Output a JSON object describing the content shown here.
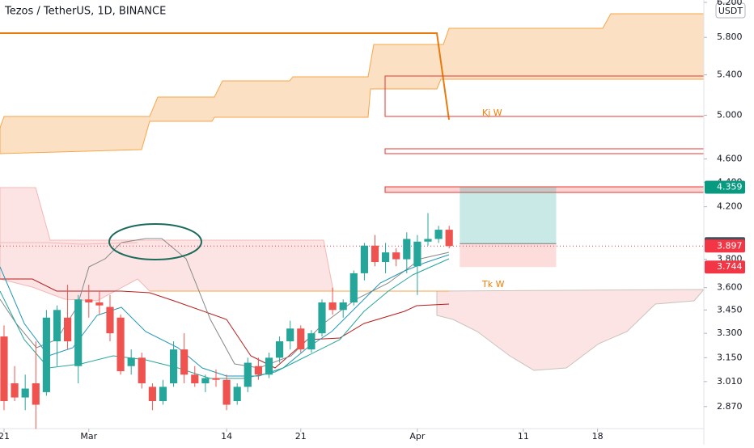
{
  "chart_data": {
    "type": "candlestick",
    "title": "Tezos / TetherUS, 1D, BINANCE",
    "currency": "USDT",
    "log_scale": true,
    "ylim": [
      2.752,
      6.228
    ],
    "yticks": [
      {
        "value": 2.87,
        "label": "2.870"
      },
      {
        "value": 3.01,
        "label": "3.010"
      },
      {
        "value": 3.15,
        "label": "3.150"
      },
      {
        "value": 3.3,
        "label": "3.300"
      },
      {
        "value": 3.45,
        "label": "3.450"
      },
      {
        "value": 3.6,
        "label": "3.600"
      },
      {
        "value": 3.8,
        "label": "3.800"
      },
      {
        "value": 4.2,
        "label": "4.200"
      },
      {
        "value": 4.4,
        "label": "4.400"
      },
      {
        "value": 4.6,
        "label": "4.600"
      },
      {
        "value": 5.0,
        "label": "5.000"
      },
      {
        "value": 5.4,
        "label": "5.400"
      },
      {
        "value": 5.8,
        "label": "5.800"
      },
      {
        "value": 6.2,
        "label": "6.200"
      }
    ],
    "xlim": [
      -0.38,
      66.03
    ],
    "xticks": [
      {
        "value": 0,
        "label": "21"
      },
      {
        "value": 8,
        "label": "Mar"
      },
      {
        "value": 21,
        "label": "14"
      },
      {
        "value": 28,
        "label": "21"
      },
      {
        "value": 39,
        "label": "Apr"
      },
      {
        "value": 49,
        "label": "11"
      },
      {
        "value": 56,
        "label": "18"
      }
    ],
    "x": [
      0,
      1,
      2,
      3,
      4,
      5,
      6,
      7,
      8,
      9,
      10,
      11,
      12,
      13,
      14,
      15,
      16,
      17,
      18,
      19,
      20,
      21,
      22,
      23,
      24,
      25,
      26,
      27,
      28,
      29,
      30,
      31,
      32,
      33,
      34,
      35,
      36,
      37,
      38,
      39,
      40,
      41,
      42
    ],
    "open": [
      3.28,
      3.0,
      2.92,
      3.0,
      2.95,
      3.25,
      3.4,
      3.1,
      3.52,
      3.5,
      3.47,
      3.4,
      3.1,
      3.15,
      2.98,
      2.9,
      3.0,
      3.2,
      3.05,
      3.0,
      3.03,
      3.02,
      2.9,
      2.98,
      3.1,
      3.05,
      3.15,
      3.25,
      3.33,
      3.2,
      3.3,
      3.5,
      3.45,
      3.5,
      3.7,
      3.9,
      3.78,
      3.85,
      3.8,
      3.75,
      3.93,
      3.95,
      4.02
    ],
    "high": [
      3.35,
      3.1,
      3.05,
      3.25,
      3.45,
      3.48,
      3.62,
      3.55,
      3.62,
      3.58,
      3.55,
      3.42,
      3.2,
      3.18,
      3.0,
      3.02,
      3.25,
      3.3,
      3.1,
      3.05,
      3.08,
      3.05,
      3.0,
      3.15,
      3.15,
      3.18,
      3.28,
      3.38,
      3.35,
      3.32,
      3.52,
      3.6,
      3.52,
      3.72,
      3.92,
      3.98,
      3.92,
      3.88,
      4.0,
      3.98,
      4.15,
      4.05,
      4.05
    ],
    "low": [
      2.85,
      2.9,
      2.85,
      2.75,
      2.93,
      3.1,
      3.2,
      3.0,
      3.4,
      3.42,
      3.25,
      3.05,
      3.05,
      2.97,
      2.85,
      2.88,
      2.98,
      3.0,
      2.98,
      2.95,
      2.98,
      2.85,
      2.88,
      2.95,
      3.02,
      3.03,
      3.12,
      3.2,
      3.18,
      3.18,
      3.28,
      3.42,
      3.4,
      3.48,
      3.65,
      3.75,
      3.7,
      3.75,
      3.7,
      3.55,
      3.9,
      3.92,
      3.88
    ],
    "close": [
      2.9,
      2.92,
      2.97,
      2.88,
      3.4,
      3.45,
      3.25,
      3.52,
      3.5,
      3.48,
      3.3,
      3.07,
      3.15,
      3.0,
      2.9,
      2.98,
      3.2,
      3.05,
      3.0,
      3.03,
      3.02,
      2.88,
      2.98,
      3.12,
      3.05,
      3.15,
      3.25,
      3.33,
      3.2,
      3.3,
      3.5,
      3.45,
      3.5,
      3.7,
      3.9,
      3.78,
      3.85,
      3.8,
      3.95,
      3.93,
      3.95,
      4.02,
      3.897
    ],
    "up_color": "#26a69a",
    "down_color": "#ef5350",
    "price_labels": [
      {
        "value": 4.359,
        "color": "#089981"
      },
      {
        "value": 3.915,
        "color": "#4a4e59"
      },
      {
        "value": 3.897,
        "color": "#f23645"
      },
      {
        "value": 3.744,
        "color": "#f23645"
      }
    ],
    "annotations": [
      "Kj W",
      "Tk W"
    ]
  }
}
